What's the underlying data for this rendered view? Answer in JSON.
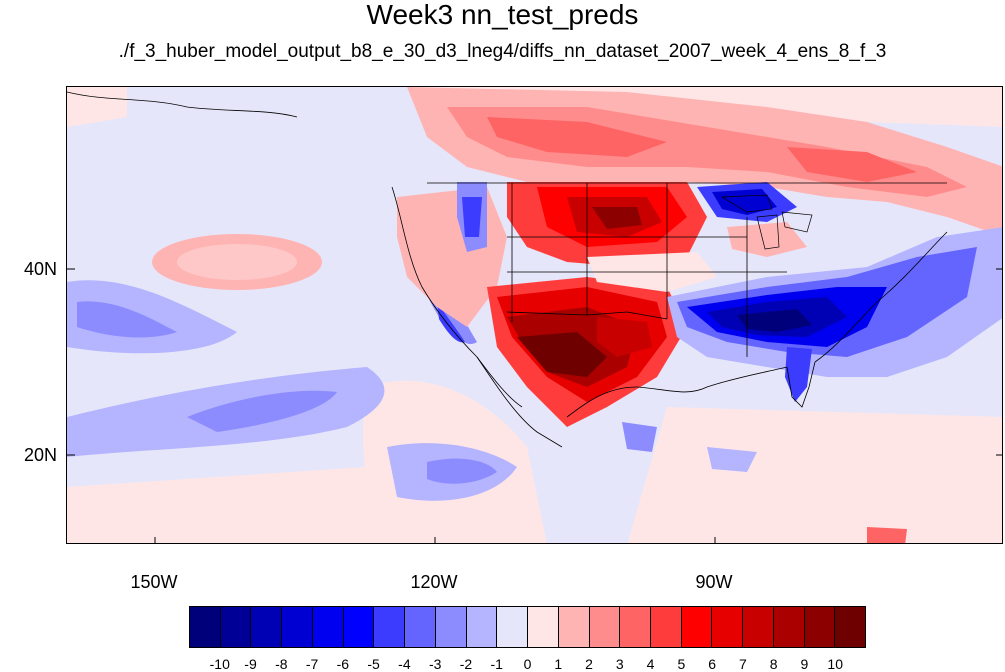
{
  "title": "Week3 nn_test_preds",
  "subtitle": "./f_3_huber_model_output_b8_e_30_d3_lneg4/diffs_nn_dataset_2007_week_4_ens_8_f_3",
  "lat_labels": [
    "40N",
    "20N"
  ],
  "lon_labels": [
    "150W",
    "120W",
    "90W"
  ],
  "colorbar": {
    "labels": [
      "-10",
      "-9",
      "-8",
      "-7",
      "-6",
      "-5",
      "-4",
      "-3",
      "-2",
      "-1",
      "0",
      "1",
      "2",
      "3",
      "4",
      "5",
      "6",
      "7",
      "8",
      "9",
      "10"
    ],
    "colors": [
      "#00007a",
      "#000096",
      "#0000b4",
      "#0000d2",
      "#0000f0",
      "#0000ff",
      "#3c3cff",
      "#6464ff",
      "#8c8cff",
      "#b4b4ff",
      "#e6e6fa",
      "#ffe6e6",
      "#ffb4b4",
      "#ff8c8c",
      "#ff6464",
      "#ff3c3c",
      "#ff0000",
      "#e60000",
      "#c80000",
      "#aa0000",
      "#8c0000",
      "#6e0000"
    ]
  }
}
